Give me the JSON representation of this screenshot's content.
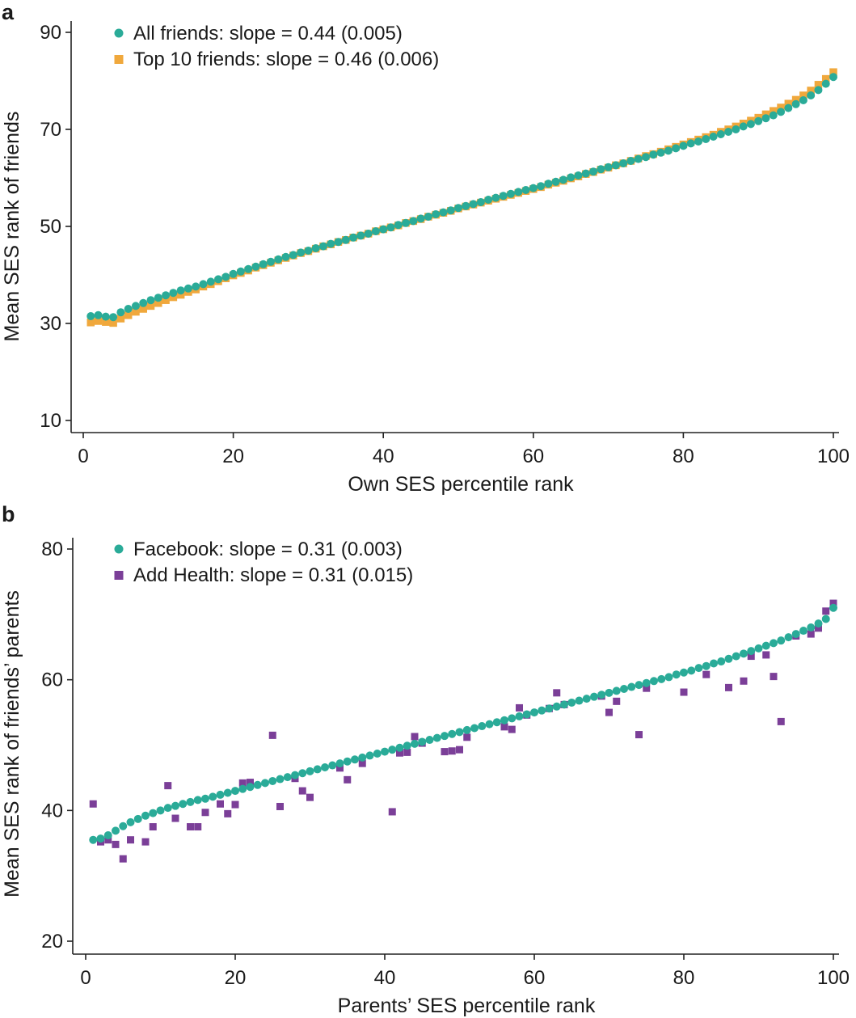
{
  "chart_data": [
    {
      "panel": "a",
      "type": "scatter",
      "xlabel": "Own SES percentile rank",
      "ylabel": "Mean SES rank of friends",
      "xlim": [
        0,
        100
      ],
      "ylim": [
        10,
        90
      ],
      "xticks": [
        "0",
        "20",
        "40",
        "60",
        "80",
        "100"
      ],
      "yticks": [
        "10",
        "30",
        "50",
        "70",
        "90"
      ],
      "grid": false,
      "legend_position": "top-left",
      "series": [
        {
          "name": "All friends: slope = 0.44 (0.005)",
          "marker": "circle",
          "color": "#2aab98",
          "x": [
            1,
            2,
            3,
            4,
            5,
            6,
            7,
            8,
            9,
            10,
            11,
            12,
            13,
            14,
            15,
            16,
            17,
            18,
            19,
            20,
            21,
            22,
            23,
            24,
            25,
            26,
            27,
            28,
            29,
            30,
            31,
            32,
            33,
            34,
            35,
            36,
            37,
            38,
            39,
            40,
            41,
            42,
            43,
            44,
            45,
            46,
            47,
            48,
            49,
            50,
            51,
            52,
            53,
            54,
            55,
            56,
            57,
            58,
            59,
            60,
            61,
            62,
            63,
            64,
            65,
            66,
            67,
            68,
            69,
            70,
            71,
            72,
            73,
            74,
            75,
            76,
            77,
            78,
            79,
            80,
            81,
            82,
            83,
            84,
            85,
            86,
            87,
            88,
            89,
            90,
            91,
            92,
            93,
            94,
            95,
            96,
            97,
            98,
            99,
            100
          ],
          "y": [
            31.5,
            31.7,
            31.4,
            31.3,
            32.3,
            33.0,
            33.6,
            34.2,
            34.8,
            35.3,
            35.8,
            36.3,
            36.8,
            37.2,
            37.6,
            38.1,
            38.6,
            39.1,
            39.6,
            40.2,
            40.7,
            41.2,
            41.7,
            42.2,
            42.7,
            43.2,
            43.7,
            44.1,
            44.6,
            45.0,
            45.5,
            45.9,
            46.4,
            46.8,
            47.2,
            47.7,
            48.1,
            48.5,
            49.0,
            49.4,
            49.8,
            50.3,
            50.7,
            51.1,
            51.6,
            52.0,
            52.5,
            52.9,
            53.3,
            53.8,
            54.2,
            54.6,
            55.0,
            55.5,
            55.9,
            56.3,
            56.7,
            57.1,
            57.5,
            57.9,
            58.3,
            58.8,
            59.2,
            59.6,
            60.1,
            60.5,
            60.9,
            61.3,
            61.8,
            62.2,
            62.6,
            63.0,
            63.5,
            63.9,
            64.3,
            64.8,
            65.2,
            65.6,
            66.1,
            66.6,
            67.1,
            67.5,
            68.0,
            68.5,
            69.0,
            69.5,
            70.0,
            70.6,
            71.1,
            71.7,
            72.3,
            72.9,
            73.6,
            74.4,
            75.2,
            76.0,
            77.0,
            78.1,
            79.4,
            80.8
          ]
        },
        {
          "name": "Top 10 friends: slope = 0.46 (0.006)",
          "marker": "square",
          "color": "#f0a83c",
          "x": [
            1,
            2,
            3,
            4,
            5,
            6,
            7,
            8,
            9,
            10,
            11,
            12,
            13,
            14,
            15,
            16,
            17,
            18,
            19,
            20,
            21,
            22,
            23,
            24,
            25,
            26,
            27,
            28,
            29,
            30,
            31,
            32,
            33,
            34,
            35,
            36,
            37,
            38,
            39,
            40,
            41,
            42,
            43,
            44,
            45,
            46,
            47,
            48,
            49,
            50,
            51,
            52,
            53,
            54,
            55,
            56,
            57,
            58,
            59,
            60,
            61,
            62,
            63,
            64,
            65,
            66,
            67,
            68,
            69,
            70,
            71,
            72,
            73,
            74,
            75,
            76,
            77,
            78,
            79,
            80,
            81,
            82,
            83,
            84,
            85,
            86,
            87,
            88,
            89,
            90,
            91,
            92,
            93,
            94,
            95,
            96,
            97,
            98,
            99,
            100
          ],
          "y": [
            30.2,
            30.5,
            30.3,
            30.1,
            31.0,
            31.7,
            32.4,
            33.0,
            33.6,
            34.2,
            34.8,
            35.4,
            35.9,
            36.5,
            37.0,
            37.6,
            38.1,
            38.7,
            39.3,
            39.9,
            40.4,
            40.9,
            41.5,
            42.0,
            42.5,
            43.0,
            43.5,
            44.0,
            44.5,
            44.9,
            45.4,
            45.9,
            46.3,
            46.8,
            47.2,
            47.7,
            48.1,
            48.5,
            49.0,
            49.4,
            49.8,
            50.2,
            50.7,
            51.1,
            51.5,
            52.0,
            52.4,
            52.8,
            53.2,
            53.7,
            54.1,
            54.5,
            54.9,
            55.3,
            55.7,
            56.1,
            56.5,
            56.9,
            57.3,
            57.7,
            58.1,
            58.6,
            59.0,
            59.4,
            59.9,
            60.3,
            60.8,
            61.2,
            61.7,
            62.1,
            62.6,
            63.0,
            63.5,
            64.0,
            64.5,
            64.9,
            65.4,
            65.9,
            66.4,
            66.9,
            67.4,
            67.9,
            68.4,
            68.9,
            69.5,
            70.0,
            70.6,
            71.2,
            71.8,
            72.4,
            73.1,
            73.8,
            74.5,
            75.3,
            76.1,
            77.0,
            78.0,
            79.2,
            80.4,
            81.8
          ]
        }
      ]
    },
    {
      "panel": "b",
      "type": "scatter",
      "xlabel": "Parents’ SES percentile rank",
      "ylabel": "Mean SES rank of friends’ parents",
      "xlim": [
        0,
        100
      ],
      "ylim": [
        20,
        80
      ],
      "xticks": [
        "0",
        "20",
        "40",
        "60",
        "80",
        "100"
      ],
      "yticks": [
        "20",
        "40",
        "60",
        "80"
      ],
      "grid": false,
      "legend_position": "top-left",
      "series": [
        {
          "name": "Facebook: slope = 0.31 (0.003)",
          "marker": "circle",
          "color": "#2aab98",
          "x": [
            1,
            2,
            3,
            4,
            5,
            6,
            7,
            8,
            9,
            10,
            11,
            12,
            13,
            14,
            15,
            16,
            17,
            18,
            19,
            20,
            21,
            22,
            23,
            24,
            25,
            26,
            27,
            28,
            29,
            30,
            31,
            32,
            33,
            34,
            35,
            36,
            37,
            38,
            39,
            40,
            41,
            42,
            43,
            44,
            45,
            46,
            47,
            48,
            49,
            50,
            51,
            52,
            53,
            54,
            55,
            56,
            57,
            58,
            59,
            60,
            61,
            62,
            63,
            64,
            65,
            66,
            67,
            68,
            69,
            70,
            71,
            72,
            73,
            74,
            75,
            76,
            77,
            78,
            79,
            80,
            81,
            82,
            83,
            84,
            85,
            86,
            87,
            88,
            89,
            90,
            91,
            92,
            93,
            94,
            95,
            96,
            97,
            98,
            99,
            100
          ],
          "y": [
            35.5,
            35.7,
            36.2,
            36.9,
            37.6,
            38.2,
            38.7,
            39.2,
            39.6,
            40.0,
            40.4,
            40.7,
            41.0,
            41.3,
            41.6,
            41.8,
            42.1,
            42.4,
            42.7,
            43.0,
            43.3,
            43.6,
            43.9,
            44.2,
            44.5,
            44.8,
            45.1,
            45.4,
            45.7,
            46.0,
            46.3,
            46.6,
            46.9,
            47.2,
            47.5,
            47.8,
            48.1,
            48.4,
            48.7,
            49.0,
            49.3,
            49.6,
            49.9,
            50.2,
            50.5,
            50.8,
            51.1,
            51.4,
            51.7,
            52.0,
            52.3,
            52.6,
            52.9,
            53.2,
            53.5,
            53.8,
            54.1,
            54.4,
            54.7,
            55.0,
            55.3,
            55.6,
            55.9,
            56.2,
            56.5,
            56.8,
            57.1,
            57.4,
            57.7,
            58.0,
            58.3,
            58.6,
            58.9,
            59.2,
            59.5,
            59.8,
            60.1,
            60.4,
            60.8,
            61.1,
            61.4,
            61.8,
            62.1,
            62.5,
            62.8,
            63.2,
            63.6,
            64.0,
            64.4,
            64.8,
            65.2,
            65.6,
            66.0,
            66.5,
            67.0,
            67.5,
            68.0,
            68.6,
            69.3,
            71.0
          ]
        },
        {
          "name": "Add Health: slope = 0.31 (0.015)",
          "marker": "square",
          "color": "#7b3f98",
          "x": [
            1,
            2,
            3,
            4,
            5,
            6,
            8,
            9,
            11,
            12,
            14,
            15,
            16,
            18,
            19,
            20,
            21,
            22,
            25,
            26,
            28,
            29,
            30,
            34,
            35,
            37,
            41,
            42,
            43,
            44,
            45,
            48,
            49,
            50,
            51,
            56,
            57,
            58,
            59,
            62,
            63,
            64,
            69,
            70,
            71,
            74,
            75,
            80,
            83,
            86,
            88,
            89,
            91,
            92,
            93,
            95,
            97,
            98,
            99,
            100
          ],
          "y": [
            41.0,
            35.2,
            35.5,
            34.8,
            32.6,
            35.5,
            35.2,
            37.5,
            43.8,
            38.8,
            37.5,
            37.5,
            39.7,
            41.0,
            39.5,
            40.9,
            44.2,
            44.3,
            51.5,
            40.6,
            44.9,
            43.0,
            42.0,
            46.5,
            44.7,
            47.2,
            39.8,
            48.8,
            48.9,
            51.3,
            50.3,
            49.0,
            49.1,
            49.3,
            51.2,
            52.8,
            52.4,
            55.7,
            54.6,
            55.6,
            58.0,
            56.2,
            57.5,
            55.0,
            56.7,
            51.6,
            58.7,
            58.1,
            60.8,
            58.8,
            59.8,
            63.6,
            63.8,
            60.5,
            53.6,
            66.7,
            67.0,
            67.9,
            70.5,
            71.7
          ]
        }
      ]
    }
  ]
}
